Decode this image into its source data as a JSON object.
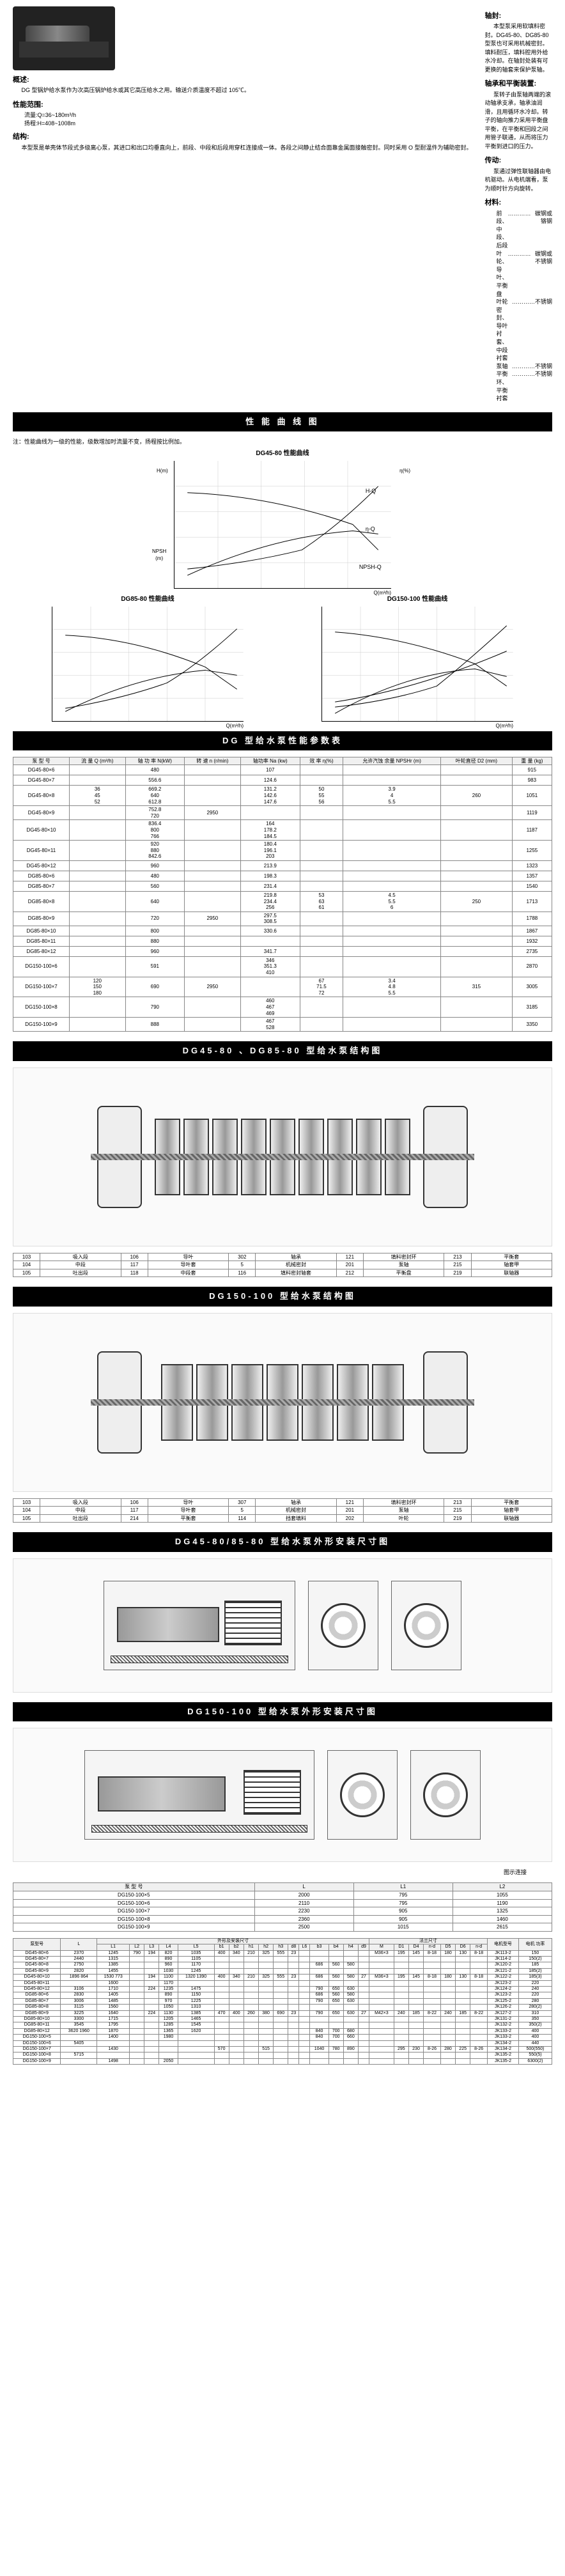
{
  "header": {
    "overview_title": "概述:",
    "overview_text": "DG 型锅炉给水泵作为次高压锅炉给水或其它高压给水之用。输送介质温度不超过 105℃。",
    "perf_range_title": "性能范围:",
    "perf_flow": "流量:Q=36~180m³/h",
    "perf_head": "扬程:H=408~1008m",
    "structure_title": "结构:",
    "structure_text": "本型泵是单壳体节段式多级离心泵，其进口和出口均垂直向上，前段、中段和后段用穿杠连接成一体。各段之间静止结合面靠金属面接触密封。同时采用 O 型耐温件为辅助密封。",
    "shaft_seal_title": "轴封:",
    "shaft_seal_text": "本型泵采用软填料密封。DG45-80、DG85-80 型泵也可采用机械密封。填料耐压，填料腔用外给水冷却。在轴封处装有可更换的轴套来保护泵轴。",
    "bearing_title": "轴承和平衡装置:",
    "bearing_text": "泵转子由泵轴两端的滚动轴承支承，轴承油润滑，且用循环水冷却。转子的轴向推力采用平衡盘平衡，在平衡和回段之间用管子联通，从而将压力平衡到进口的压力。",
    "drive_title": "传动:",
    "drive_text": "泵通过弹性联轴器由电机驱动。从电机端看，泵为顺时针方向旋转。",
    "material_title": "材料:",
    "materials": [
      {
        "part": "前段、中段、后段",
        "mat": "碳钢或铬钢"
      },
      {
        "part": "叶轮、导叶、平衡盘",
        "mat": "碳钢或不锈钢"
      },
      {
        "part": "叶轮密封、导叶衬套、中段衬套",
        "mat": "不锈钢"
      },
      {
        "part": "泵轴",
        "mat": "不锈钢"
      },
      {
        "part": "平衡环、平衡衬套",
        "mat": "不锈钢"
      }
    ]
  },
  "section_titles": {
    "perf_curves": "性 能 曲 线 图",
    "perf_table": "DG 型给水泵性能参数表",
    "struct_45_85": "DG45-80 、DG85-80 型给水泵结构图",
    "struct_150": "DG150-100 型给水泵结构图",
    "outline_45_85": "DG45-80/85-80 型给水泵外形安装尺寸图",
    "outline_150": "DG150-100 型给水泵外形安装尺寸图"
  },
  "chart_titles": {
    "c1": "DG45-80 性能曲线",
    "c2": "DG85-80 性能曲线",
    "c3": "DG150-100 性能曲线"
  },
  "chart_note": "注：性能曲线为一级的性能，级数增加时流量不变，扬程按比例加。",
  "perf_headers": [
    "泵 型 号",
    "流 量 Q (m³/h)",
    "轴 功 率 N(kW)",
    "转 速 n (r/min)",
    "轴功率 Na (kw)",
    "效 率 η(%)",
    "允许汽蚀 余量 NPSHr (m)",
    "叶轮直径 D2 (mm)",
    "重 量 (kg)"
  ],
  "perf_rows": [
    {
      "model": "DG45-80×6",
      "Q": "",
      "N": "480",
      "n": "",
      "Na": "107",
      "eta": "",
      "npsh": "",
      "d2": "",
      "wt": "915"
    },
    {
      "model": "DG45-80×7",
      "Q": "",
      "N": "556.6",
      "n": "",
      "Na": "124.6",
      "eta": "",
      "npsh": "",
      "d2": "",
      "wt": "983"
    },
    {
      "model": "DG45-80×8",
      "Q": "36\n45\n52",
      "N": "669.2\n640\n612.8",
      "n": "",
      "Na": "131.2\n142.6\n147.6",
      "eta": "50\n55\n56",
      "npsh": "3.9\n4\n5.5",
      "d2": "260",
      "wt": "1051"
    },
    {
      "model": "DG45-80×9",
      "Q": "",
      "N": "752.8\n720",
      "n": "2950",
      "Na": "",
      "eta": "",
      "npsh": "",
      "d2": "",
      "wt": "1119"
    },
    {
      "model": "DG45-80×10",
      "Q": "",
      "N": "836.4\n800\n766",
      "n": "",
      "Na": "164\n178.2\n184.5",
      "eta": "",
      "npsh": "",
      "d2": "",
      "wt": "1187"
    },
    {
      "model": "DG45-80×11",
      "Q": "",
      "N": "920\n880\n842.6",
      "n": "",
      "Na": "180.4\n196.1\n203",
      "eta": "",
      "npsh": "",
      "d2": "",
      "wt": "1255"
    },
    {
      "model": "DG45-80×12",
      "Q": "",
      "N": "960",
      "n": "",
      "Na": "213.9",
      "eta": "",
      "npsh": "",
      "d2": "",
      "wt": "1323"
    },
    {
      "model": "DG85-80×6",
      "Q": "",
      "N": "480",
      "n": "",
      "Na": "198.3",
      "eta": "",
      "npsh": "",
      "d2": "",
      "wt": "1357"
    },
    {
      "model": "DG85-80×7",
      "Q": "",
      "N": "560",
      "n": "",
      "Na": "231.4",
      "eta": "",
      "npsh": "",
      "d2": "",
      "wt": "1540"
    },
    {
      "model": "DG85-80×8",
      "Q": "",
      "N": "640",
      "n": "",
      "Na": "219.8\n234.4\n256",
      "eta": "53\n63\n61",
      "npsh": "4.5\n5.5\n6",
      "d2": "250",
      "wt": "1713"
    },
    {
      "model": "DG85-80×9",
      "Q": "",
      "N": "720",
      "n": "2950",
      "Na": "297.5\n308.5",
      "eta": "",
      "npsh": "",
      "d2": "",
      "wt": "1788"
    },
    {
      "model": "DG85-80×10",
      "Q": "",
      "N": "800",
      "n": "",
      "Na": "330.6",
      "eta": "",
      "npsh": "",
      "d2": "",
      "wt": "1867"
    },
    {
      "model": "DG85-80×11",
      "Q": "",
      "N": "880",
      "n": "",
      "Na": "",
      "eta": "",
      "npsh": "",
      "d2": "",
      "wt": "1932"
    },
    {
      "model": "DG85-80×12",
      "Q": "",
      "N": "960",
      "n": "",
      "Na": "341.7",
      "eta": "",
      "npsh": "",
      "d2": "",
      "wt": "2735"
    },
    {
      "model": "DG150-100×6",
      "Q": "",
      "N": "591",
      "n": "",
      "Na": "346\n351.3\n410",
      "eta": "",
      "npsh": "",
      "d2": "",
      "wt": "2870"
    },
    {
      "model": "DG150-100×7",
      "Q": "120\n150\n180",
      "N": "690",
      "n": "2950",
      "Na": "",
      "eta": "67\n71.5\n72",
      "npsh": "3.4\n4.8\n5.5",
      "d2": "315",
      "wt": "3005"
    },
    {
      "model": "DG150-100×8",
      "Q": "",
      "N": "790",
      "n": "",
      "Na": "460\n467\n469",
      "eta": "",
      "npsh": "",
      "d2": "",
      "wt": "3185"
    },
    {
      "model": "DG150-100×9",
      "Q": "",
      "N": "888",
      "n": "",
      "Na": "467\n528",
      "eta": "",
      "npsh": "",
      "d2": "",
      "wt": "3350"
    }
  ],
  "parts_headers_1": [
    {
      "no": "103",
      "name": "吸入段"
    },
    {
      "no": "106",
      "name": "导叶"
    },
    {
      "no": "302",
      "name": "轴承"
    },
    {
      "no": "121",
      "name": "填料密封环"
    },
    {
      "no": "213",
      "name": "平衡套"
    },
    {
      "no": "104",
      "name": "中段"
    },
    {
      "no": "117",
      "name": "导叶套"
    },
    {
      "no": "5",
      "name": "机械密封"
    },
    {
      "no": "201",
      "name": "泵轴"
    },
    {
      "no": "215",
      "name": "轴套甲"
    },
    {
      "no": "105",
      "name": "吐出段"
    },
    {
      "no": "118",
      "name": "中段套"
    },
    {
      "no": "116",
      "name": "填料密封轴套"
    },
    {
      "no": "212",
      "name": "平衡盘"
    },
    {
      "no": "219",
      "name": "联轴器"
    }
  ],
  "parts_headers_2": [
    {
      "no": "103",
      "name": "吸入段"
    },
    {
      "no": "106",
      "name": "导叶"
    },
    {
      "no": "307",
      "name": "轴承"
    },
    {
      "no": "121",
      "name": "填料密封环"
    },
    {
      "no": "213",
      "name": "平衡套"
    },
    {
      "no": "104",
      "name": "中段"
    },
    {
      "no": "117",
      "name": "导叶套"
    },
    {
      "no": "5",
      "name": "机械密封"
    },
    {
      "no": "201",
      "name": "泵轴"
    },
    {
      "no": "215",
      "name": "轴套甲"
    },
    {
      "no": "105",
      "name": "吐出段"
    },
    {
      "no": "214",
      "name": "平衡套"
    },
    {
      "no": "114",
      "name": "挡套填料"
    },
    {
      "no": "202",
      "name": "叶轮"
    },
    {
      "no": "219",
      "name": "联轴器"
    }
  ],
  "dim_note": "图示连接",
  "dim150_headers": [
    "泵 型 号",
    "L",
    "L1",
    "L2"
  ],
  "dim150_rows": [
    [
      "DG150-100×5",
      "2000",
      "795",
      "1055"
    ],
    [
      "DG150-100×6",
      "2110",
      "795",
      "1190"
    ],
    [
      "DG150-100×7",
      "2230",
      "905",
      "1325"
    ],
    [
      "DG150-100×8",
      "2360",
      "905",
      "1460"
    ],
    [
      "DG150-100×9",
      "2500",
      "1015",
      "2615"
    ]
  ],
  "big_table_headers_top": [
    "泵型号",
    "L",
    "外形及安装尺寸",
    "法兰尺寸",
    "电机型号",
    "电机 功率"
  ],
  "big_table_headers_mid": [
    "泵型号",
    "L",
    "泵外形尺寸",
    "电机尺寸",
    "M",
    "吸入",
    "吐出",
    "电机型号",
    "电机 功率"
  ],
  "big_table_headers": [
    "泵型号",
    "L",
    "L1",
    "L2",
    "L3",
    "L4",
    "L5",
    "b1",
    "b2",
    "h1",
    "h2",
    "h3",
    "d8",
    "L6",
    "b3",
    "b4",
    "h4",
    "d9",
    "M",
    "D1",
    "D4",
    "n-d",
    "D5",
    "D6",
    "n-d",
    "电机型号",
    "电机 功率"
  ],
  "big_rows": [
    {
      "model": "DG45-80×6",
      "L": "2370",
      "L1": "1245",
      "L2": "790",
      "L3": "194",
      "L4": "820",
      "L5": "1035",
      "b1": "400",
      "b2": "340",
      "h1": "210",
      "h2": "325",
      "h3": "555",
      "d8": "23",
      "m": "M36×3",
      "d1a": "195",
      "d1b": "145",
      "nd1": "8-18",
      "d2a": "180",
      "d2b": "130",
      "nd2": "8-18",
      "motor": "JK113-2",
      "kw": "150"
    },
    {
      "model": "DG45-80×7",
      "L": "2440",
      "L1": "1315",
      "L4": "890",
      "L5": "1105",
      "b3": "",
      "b4": "",
      "h4": "",
      "motor": "JK114-2",
      "kw": "150(2)"
    },
    {
      "model": "DG45-80×8",
      "L": "2750",
      "L1": "1385",
      "L4": "960",
      "L5": "1170",
      "b3": "686",
      "b4": "560",
      "h4": "580",
      "motor": "JK120-2",
      "kw": "185"
    },
    {
      "model": "DG45-80×9",
      "L": "2820",
      "L1": "1455",
      "L4": "1030",
      "L5": "1245",
      "motor": "JK121-2",
      "kw": "185(2)"
    },
    {
      "model": "DG45-80×10",
      "L": "1896 864",
      "L1": "1530 773",
      "L3": "194",
      "L4": "1100",
      "L5": "1320 1390",
      "b1": "400",
      "b2": "340",
      "h1": "210",
      "h2": "325",
      "h3": "555",
      "d8": "23",
      "b3": "686",
      "b4": "560",
      "h4": "580",
      "d9": "27",
      "m": "M36×3",
      "d1a": "195",
      "d1b": "145",
      "nd1": "8-18",
      "d2a": "180",
      "d2b": "130",
      "nd2": "8-18",
      "motor": "JK122-2",
      "kw": "185(3)"
    },
    {
      "model": "DG45-80×11",
      "L": "",
      "L1": "1600",
      "L4": "1170",
      "motor": "JK123-2",
      "kw": "220"
    },
    {
      "model": "DG45-80×12",
      "L": "3106",
      "L1": "1710",
      "L3": "224",
      "L4": "1235",
      "L5": "1475",
      "b3": "790",
      "b4": "650",
      "h4": "630",
      "motor": "JK124-2",
      "kw": "240"
    },
    {
      "model": "DG85-80×6",
      "L": "2830",
      "L1": "1405",
      "L3": "",
      "L4": "890",
      "L5": "1150",
      "b3": "686",
      "b4": "560",
      "h4": "580",
      "motor": "JK123-2",
      "kw": "220"
    },
    {
      "model": "DG85-80×7",
      "L": "3006",
      "L1": "1485",
      "L4": "970",
      "L5": "1225",
      "b3": "790",
      "b4": "650",
      "h4": "630",
      "motor": "JK125-2",
      "kw": "280"
    },
    {
      "model": "DG85-80×8",
      "L": "3115",
      "L1": "1560",
      "L4": "1050",
      "L5": "1310",
      "motor": "JK126-2",
      "kw": "280(2)"
    },
    {
      "model": "DG85-80×9",
      "L": "3225",
      "L1": "1640",
      "L3": "224",
      "L4": "1130",
      "L5": "1385",
      "b1": "470",
      "b2": "400",
      "h1": "260",
      "h2": "380",
      "h3": "690",
      "d8": "23",
      "b3": "790",
      "b4": "650",
      "h4": "630",
      "d9": "27",
      "m": "M42×3",
      "d1a": "240",
      "d1b": "185",
      "nd1": "8-22",
      "d2a": "240",
      "d2b": "185",
      "nd2": "8-22",
      "motor": "JK127-2",
      "kw": "310"
    },
    {
      "model": "DG85-80×10",
      "L": "3300",
      "L1": "1715",
      "L4": "1205",
      "L5": "1465",
      "motor": "JK131-2",
      "kw": "350"
    },
    {
      "model": "DG85-80×11",
      "L": "3545",
      "L1": "1795",
      "L3": "",
      "L4": "1285",
      "L5": "1545",
      "b3": "",
      "b4": "",
      "h4": "",
      "motor": "JK132-2",
      "kw": "350(2)"
    },
    {
      "model": "DG85-80×12",
      "L": "3620 1960",
      "L1": "1870",
      "L4": "1365",
      "L5": "1620",
      "b3": "840",
      "b4": "700",
      "h4": "680",
      "motor": "JK133-2",
      "kw": "400"
    },
    {
      "model": "DG150-100×5",
      "L": "",
      "L1": "1400",
      "L3": "",
      "L4": "1980",
      "L5": "",
      "b3": "840",
      "b4": "700",
      "h4": "660",
      "motor": "JK133-2",
      "kw": "400"
    },
    {
      "model": "DG150-100×6",
      "L": "5405",
      "L1": "",
      "L3": "",
      "L4": "",
      "L5": "",
      "motor": "JK134-2",
      "kw": "440"
    },
    {
      "model": "DG150-100×7",
      "L": "",
      "L1": "1430",
      "L3": "",
      "L4": "",
      "L5": "",
      "b1": "570",
      "b2": "",
      "h1": "",
      "h2": "515",
      "h3": "",
      "d8": "",
      "b3": "1040",
      "b4": "780",
      "h4": "890",
      "d9": "",
      "d1a": "295",
      "d1b": "230",
      "nd1": "8-26",
      "d2a": "280",
      "d2b": "225",
      "nd2": "8-26",
      "motor": "JK134-2",
      "kw": "500(550)"
    },
    {
      "model": "DG150-100×8",
      "L": "5715",
      "L1": "",
      "L3": "",
      "motor": "JK135-2",
      "kw": "550(5)"
    },
    {
      "model": "DG150-100×9",
      "L": "",
      "L1": "1498",
      "L3": "",
      "L4": "2050",
      "motor": "JK135-2",
      "kw": "6300(2)"
    }
  ]
}
